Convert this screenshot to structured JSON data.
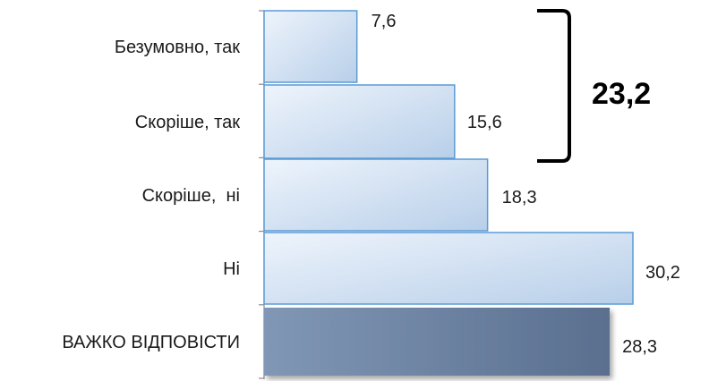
{
  "chart_data": {
    "type": "bar",
    "orientation": "horizontal",
    "categories": [
      "Безумовно, так",
      "Скоріше, так",
      "Скоріше,  ні",
      "Ні",
      "ВАЖКО ВІДПОВІСТИ"
    ],
    "values": [
      7.6,
      15.6,
      18.3,
      30.2,
      28.3
    ],
    "value_labels": [
      "7,6",
      "15,6",
      "18,3",
      "30,2",
      "28,3"
    ],
    "xlim": [
      0,
      30.2
    ],
    "grid": false,
    "legend": "none",
    "bracket": {
      "covers": [
        "Безумовно, так",
        "Скоріше, так"
      ],
      "label": "23,2"
    },
    "colors": {
      "bar_light": "#dce9f8",
      "bar_light_edge": "#5b9bd5",
      "bar_dark": "#5f7494",
      "axis": "#8c8c8c"
    }
  }
}
